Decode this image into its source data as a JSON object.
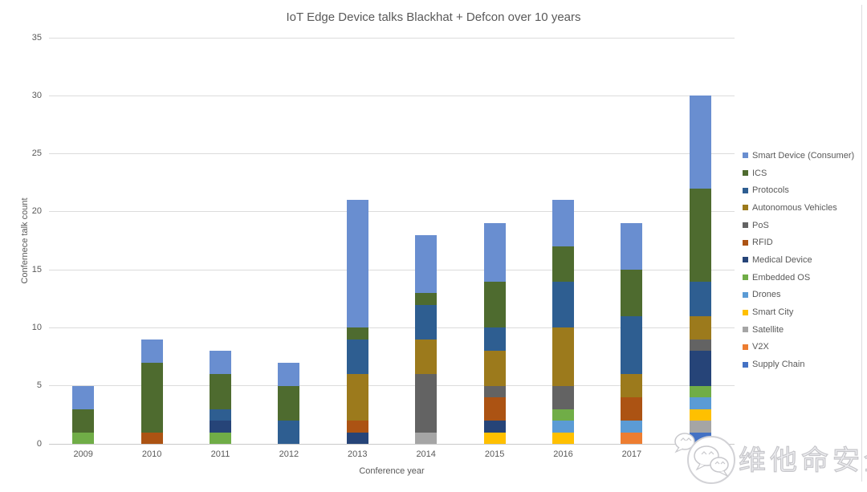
{
  "title": "IoT Edge Device talks Blackhat + Defcon over 10 years",
  "colors": {
    "text": "#595959",
    "gridline": "#DCDCDC",
    "axis_line": "#C9C9C9",
    "watermark_outline": "#C6C6CA"
  },
  "watermark": {
    "text": "维他命安全",
    "logo": "wechat-logo-icon"
  },
  "chart_data": {
    "type": "bar",
    "stacked": true,
    "title": "IoT Edge Device talks Blackhat + Defcon over 10 years",
    "xlabel": "Conference year",
    "ylabel": "Confernece talk count",
    "ylim": [
      0,
      35
    ],
    "yticks": [
      0,
      5,
      10,
      15,
      20,
      25,
      30,
      35
    ],
    "grid": true,
    "legend_position": "right",
    "stack_order": "reverse of legend order (last legend item at bottom of stack)",
    "categories": [
      "2009",
      "2010",
      "2011",
      "2012",
      "2013",
      "2014",
      "2015",
      "2016",
      "2017",
      "2018"
    ],
    "totals": [
      5,
      9,
      8,
      7,
      21,
      18,
      19,
      21,
      19,
      30
    ],
    "series": [
      {
        "name": "Smart Device (Consumer)",
        "color": "#698ED0",
        "values": [
          2,
          2,
          2,
          2,
          11,
          5,
          5,
          4,
          4,
          8
        ]
      },
      {
        "name": "ICS",
        "color": "#4E6B2F",
        "values": [
          2,
          6,
          3,
          3,
          1,
          1,
          4,
          3,
          4,
          8
        ]
      },
      {
        "name": "Protocols",
        "color": "#2E5E91",
        "values": [
          0,
          0,
          1,
          2,
          3,
          3,
          2,
          4,
          5,
          3
        ]
      },
      {
        "name": "Autonomous Vehicles",
        "color": "#9C7A1C",
        "values": [
          0,
          0,
          0,
          0,
          4,
          3,
          3,
          5,
          2,
          2
        ]
      },
      {
        "name": "PoS",
        "color": "#636363",
        "values": [
          0,
          0,
          0,
          0,
          0,
          5,
          1,
          2,
          0,
          1
        ]
      },
      {
        "name": "RFID",
        "color": "#AC5313",
        "values": [
          0,
          1,
          0,
          0,
          1,
          0,
          2,
          0,
          2,
          0
        ]
      },
      {
        "name": "Medical Device",
        "color": "#264478",
        "values": [
          0,
          0,
          1,
          0,
          1,
          0,
          1,
          0,
          0,
          3
        ]
      },
      {
        "name": "Embedded OS",
        "color": "#70AD47",
        "values": [
          1,
          0,
          1,
          0,
          0,
          0,
          0,
          1,
          0,
          1
        ]
      },
      {
        "name": "Drones",
        "color": "#5B9BD5",
        "values": [
          0,
          0,
          0,
          0,
          0,
          0,
          0,
          1,
          1,
          1
        ]
      },
      {
        "name": "Smart City",
        "color": "#FFC000",
        "values": [
          0,
          0,
          0,
          0,
          0,
          0,
          1,
          1,
          0,
          1
        ]
      },
      {
        "name": "Satellite",
        "color": "#A5A5A5",
        "values": [
          0,
          0,
          0,
          0,
          0,
          1,
          0,
          0,
          0,
          1
        ]
      },
      {
        "name": "V2X",
        "color": "#ED7D31",
        "values": [
          0,
          0,
          0,
          0,
          0,
          0,
          0,
          0,
          1,
          0
        ]
      },
      {
        "name": "Supply Chain",
        "color": "#4472C4",
        "values": [
          0,
          0,
          0,
          0,
          0,
          0,
          0,
          0,
          0,
          1
        ]
      }
    ]
  }
}
